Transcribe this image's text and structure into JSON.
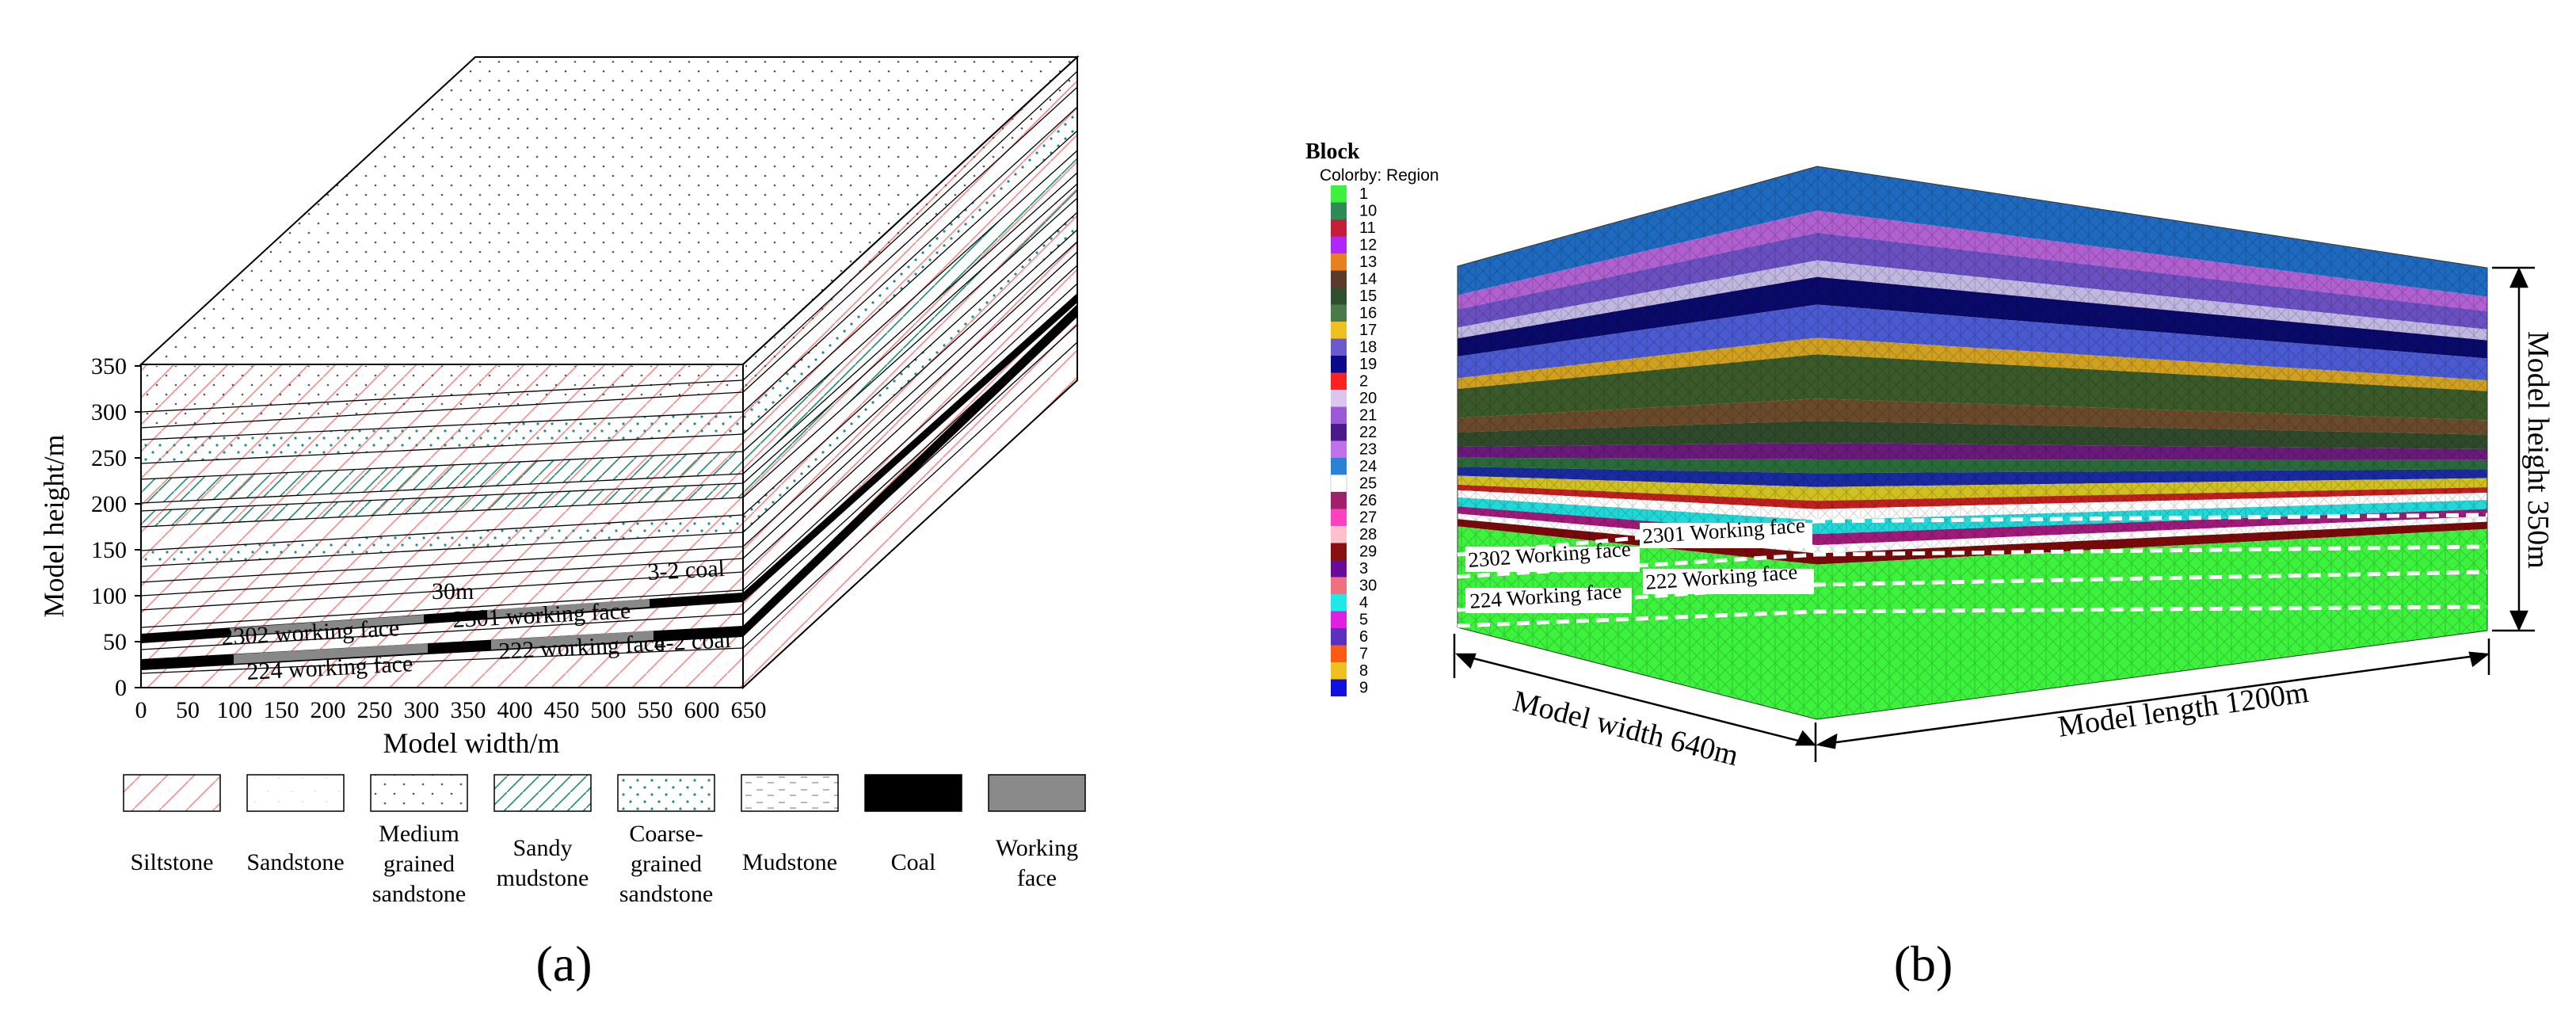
{
  "panel_a": {
    "caption": "(a)",
    "y_axis": {
      "label": "Model height/m",
      "ticks": [
        "350",
        "300",
        "250",
        "200",
        "150",
        "100",
        "50",
        "0"
      ]
    },
    "x_axis": {
      "label": "Model width/m",
      "ticks": [
        "0",
        "50",
        "100",
        "150",
        "200",
        "250",
        "300",
        "350",
        "400",
        "450",
        "500",
        "550",
        "600",
        "650"
      ]
    },
    "annotations": {
      "thickness": "30m",
      "coal_upper": "3-2 coal",
      "coal_lower": "4-2 coal",
      "face_2302": "2302 working face",
      "face_2301": "2301 working face",
      "face_224": "224 working face",
      "face_222": "222 working face"
    },
    "legend": [
      {
        "lines": [
          "Siltstone"
        ],
        "pattern": "siltstone-icon"
      },
      {
        "lines": [
          "Sandstone"
        ],
        "pattern": "sandstone-icon"
      },
      {
        "lines": [
          "Medium",
          "grained",
          "sandstone"
        ],
        "pattern": "medium-sandstone-icon"
      },
      {
        "lines": [
          "Sandy",
          "mudstone"
        ],
        "pattern": "sandy-mudstone-icon"
      },
      {
        "lines": [
          "Coarse-",
          "grained",
          "sandstone"
        ],
        "pattern": "coarse-sandstone-icon"
      },
      {
        "lines": [
          "Mudstone"
        ],
        "pattern": "mudstone-icon"
      },
      {
        "lines": [
          "Coal"
        ],
        "pattern": "coal-icon"
      },
      {
        "lines": [
          "Working",
          "face"
        ],
        "pattern": "working-face-icon"
      }
    ]
  },
  "panel_b": {
    "caption": "(b)",
    "legend_title": "Block",
    "legend_subtitle": "Colorby: Region",
    "regions": [
      {
        "label": "1",
        "color": "#3cf23c"
      },
      {
        "label": "10",
        "color": "#2e8b57"
      },
      {
        "label": "11",
        "color": "#c41e3a"
      },
      {
        "label": "12",
        "color": "#b026ff"
      },
      {
        "label": "13",
        "color": "#e8801e"
      },
      {
        "label": "14",
        "color": "#5a3a2a"
      },
      {
        "label": "15",
        "color": "#2f4f2f"
      },
      {
        "label": "16",
        "color": "#4a7a4a"
      },
      {
        "label": "17",
        "color": "#f0c020"
      },
      {
        "label": "18",
        "color": "#6a5acd"
      },
      {
        "label": "19",
        "color": "#0a0a8a"
      },
      {
        "label": "2",
        "color": "#ff2020"
      },
      {
        "label": "20",
        "color": "#dcc6f0"
      },
      {
        "label": "21",
        "color": "#9a5ad8"
      },
      {
        "label": "22",
        "color": "#4a1a8a"
      },
      {
        "label": "23",
        "color": "#c070e8"
      },
      {
        "label": "24",
        "color": "#2a82d8"
      },
      {
        "label": "25",
        "color": "#ffffff"
      },
      {
        "label": "26",
        "color": "#a0206a"
      },
      {
        "label": "27",
        "color": "#ff40c0"
      },
      {
        "label": "28",
        "color": "#ffc0cb"
      },
      {
        "label": "29",
        "color": "#8a1010"
      },
      {
        "label": "3",
        "color": "#6a0a9a"
      },
      {
        "label": "30",
        "color": "#f07080"
      },
      {
        "label": "4",
        "color": "#20e8e8"
      },
      {
        "label": "5",
        "color": "#e020e0"
      },
      {
        "label": "6",
        "color": "#5a30c0"
      },
      {
        "label": "7",
        "color": "#ff5a10"
      },
      {
        "label": "8",
        "color": "#f0c020"
      },
      {
        "label": "9",
        "color": "#1010e0"
      }
    ],
    "labels": {
      "face_2302": "2302 Working face",
      "face_2301": "2301 Working face",
      "face_224": "224 Working face",
      "face_222": "222 Working face",
      "model_width": "Model width 640m",
      "model_length": "Model length 1200m",
      "model_height": "Model height 350m"
    }
  }
}
